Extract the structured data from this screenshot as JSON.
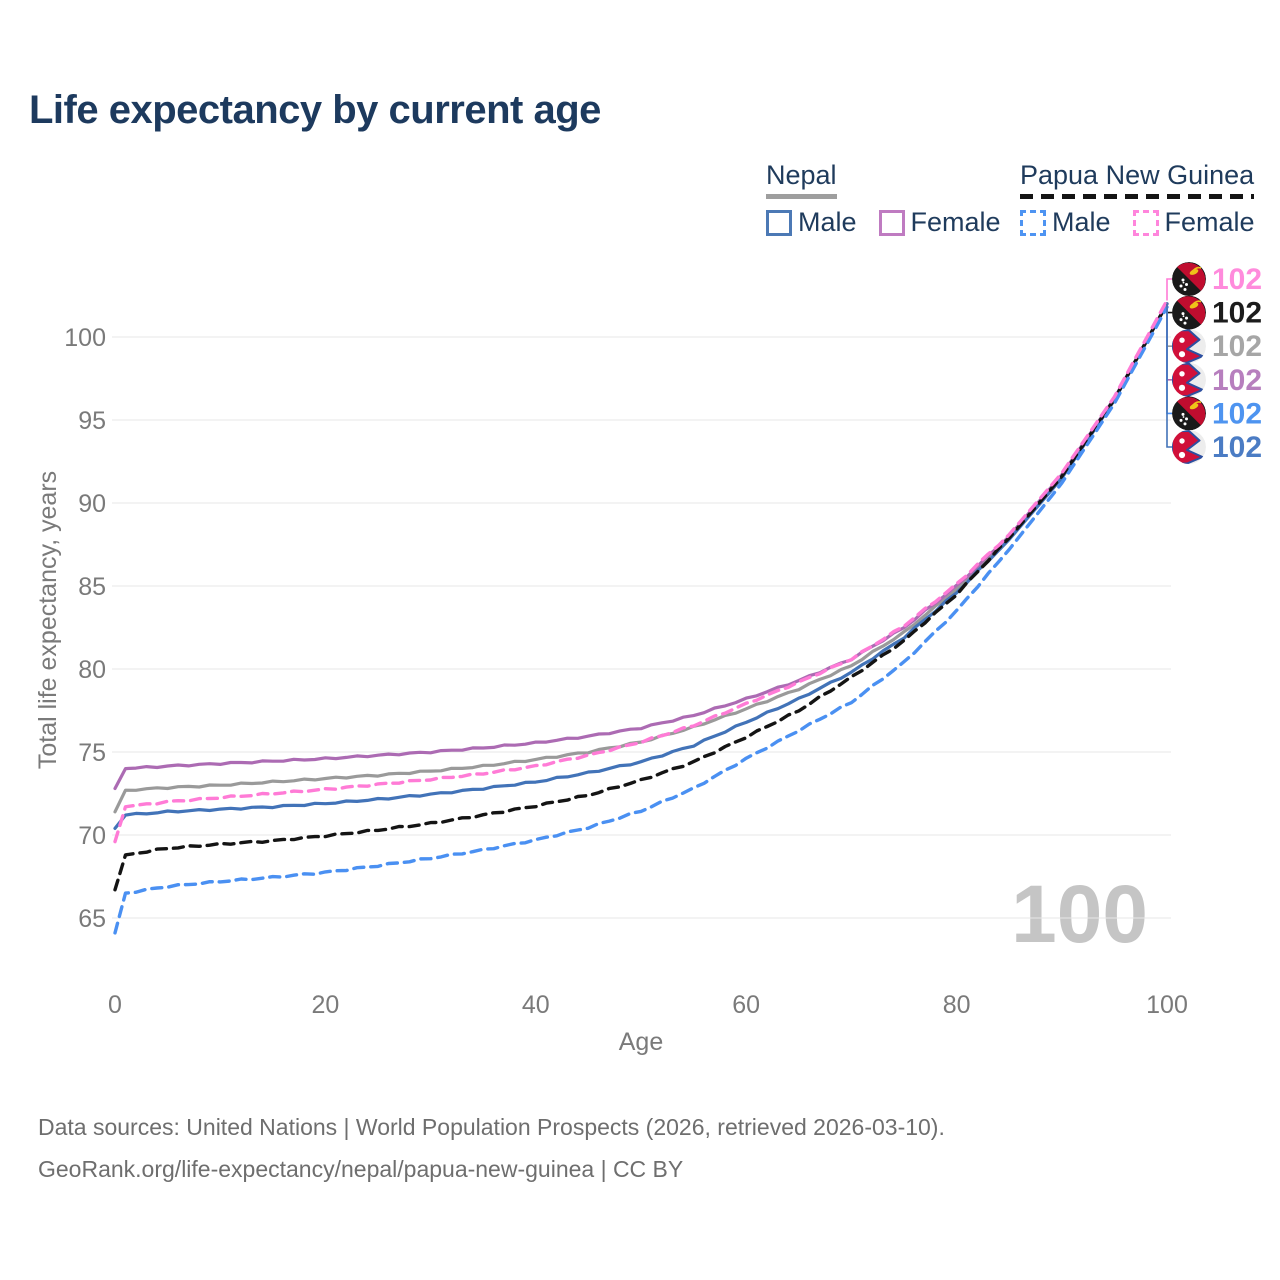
{
  "title": "Life expectancy by current age",
  "watermark": "100",
  "legend": {
    "nepal": {
      "label": "Nepal",
      "male": "Male",
      "female": "Female",
      "underline_color": "#9E9E9E",
      "male_color": "#4C79B5",
      "female_color": "#BF7BC1"
    },
    "papua_new_guinea": {
      "label": "Papua New Guinea",
      "male": "Male",
      "female": "Female",
      "underline_color": "#141414",
      "male_color": "#4E94F2",
      "female_color": "#FF85DC"
    }
  },
  "footer": {
    "line1": "Data sources: United Nations | World Population Prospects (2026, retrieved 2026-03-10).",
    "line2": "GeoRank.org/life-expectancy/nepal/papua-new-guinea | CC BY"
  },
  "chart_data": {
    "type": "line",
    "title": "Life expectancy by current age",
    "xlabel": "Age",
    "ylabel": "Total life expectancy, years",
    "x_ticks": [
      0,
      20,
      40,
      60,
      80,
      100
    ],
    "y_ticks": [
      65,
      70,
      75,
      80,
      85,
      90,
      95,
      100
    ],
    "xlim": [
      0,
      100
    ],
    "ylim": [
      63,
      103.5
    ],
    "grid": true,
    "legend_position": "top-right",
    "series": [
      {
        "key": "nepal_total",
        "name": "Nepal (both sexes)",
        "color": "#9A9A9A",
        "dash": false,
        "points": [
          [
            0,
            71.4
          ],
          [
            1,
            72.7
          ],
          [
            5,
            72.85
          ],
          [
            10,
            73.0
          ],
          [
            15,
            73.2
          ],
          [
            20,
            73.4
          ],
          [
            25,
            73.6
          ],
          [
            30,
            73.85
          ],
          [
            35,
            74.15
          ],
          [
            40,
            74.55
          ],
          [
            45,
            75.0
          ],
          [
            50,
            75.6
          ],
          [
            55,
            76.5
          ],
          [
            60,
            77.6
          ],
          [
            65,
            78.8
          ],
          [
            70,
            80.2
          ],
          [
            75,
            82.2
          ],
          [
            80,
            84.8
          ],
          [
            85,
            87.9
          ],
          [
            90,
            91.6
          ],
          [
            95,
            96.25
          ],
          [
            100,
            102.0
          ]
        ]
      },
      {
        "key": "nepal_female",
        "name": "Nepal Female",
        "color": "#AC6BB3",
        "dash": false,
        "points": [
          [
            0,
            72.8
          ],
          [
            1,
            74.0
          ],
          [
            5,
            74.15
          ],
          [
            10,
            74.3
          ],
          [
            15,
            74.45
          ],
          [
            20,
            74.6
          ],
          [
            25,
            74.8
          ],
          [
            30,
            75.0
          ],
          [
            35,
            75.25
          ],
          [
            40,
            75.55
          ],
          [
            45,
            75.95
          ],
          [
            50,
            76.45
          ],
          [
            55,
            77.2
          ],
          [
            60,
            78.2
          ],
          [
            65,
            79.3
          ],
          [
            70,
            80.6
          ],
          [
            75,
            82.5
          ],
          [
            80,
            85.0
          ],
          [
            85,
            88.0
          ],
          [
            90,
            91.7
          ],
          [
            95,
            96.3
          ],
          [
            100,
            102.0
          ]
        ]
      },
      {
        "key": "nepal_male",
        "name": "Nepal Male",
        "color": "#4273B8",
        "dash": false,
        "points": [
          [
            0,
            70.4
          ],
          [
            1,
            71.2
          ],
          [
            5,
            71.4
          ],
          [
            10,
            71.55
          ],
          [
            15,
            71.7
          ],
          [
            20,
            71.9
          ],
          [
            25,
            72.15
          ],
          [
            30,
            72.45
          ],
          [
            35,
            72.8
          ],
          [
            40,
            73.2
          ],
          [
            45,
            73.75
          ],
          [
            50,
            74.4
          ],
          [
            55,
            75.4
          ],
          [
            60,
            76.8
          ],
          [
            65,
            78.2
          ],
          [
            70,
            79.8
          ],
          [
            75,
            81.9
          ],
          [
            80,
            84.6
          ],
          [
            85,
            87.8
          ],
          [
            90,
            91.5
          ],
          [
            95,
            96.2
          ],
          [
            100,
            102.0
          ]
        ]
      },
      {
        "key": "png_total",
        "name": "Papua New Guinea (both sexes)",
        "color": "#141414",
        "dash": true,
        "points": [
          [
            0,
            66.7
          ],
          [
            1,
            68.8
          ],
          [
            5,
            69.2
          ],
          [
            10,
            69.45
          ],
          [
            15,
            69.65
          ],
          [
            20,
            69.95
          ],
          [
            25,
            70.3
          ],
          [
            30,
            70.7
          ],
          [
            35,
            71.2
          ],
          [
            40,
            71.75
          ],
          [
            45,
            72.4
          ],
          [
            50,
            73.3
          ],
          [
            55,
            74.4
          ],
          [
            60,
            75.9
          ],
          [
            65,
            77.5
          ],
          [
            70,
            79.5
          ],
          [
            75,
            81.7
          ],
          [
            80,
            84.5
          ],
          [
            85,
            87.9
          ],
          [
            90,
            91.6
          ],
          [
            95,
            96.25
          ],
          [
            100,
            102.0
          ]
        ]
      },
      {
        "key": "png_male",
        "name": "Papua New Guinea Male",
        "color": "#4A90F2",
        "dash": true,
        "points": [
          [
            0,
            64.1
          ],
          [
            1,
            66.5
          ],
          [
            5,
            66.9
          ],
          [
            10,
            67.2
          ],
          [
            15,
            67.45
          ],
          [
            20,
            67.75
          ],
          [
            25,
            68.15
          ],
          [
            30,
            68.6
          ],
          [
            35,
            69.1
          ],
          [
            40,
            69.7
          ],
          [
            45,
            70.45
          ],
          [
            50,
            71.45
          ],
          [
            55,
            72.8
          ],
          [
            60,
            74.6
          ],
          [
            65,
            76.3
          ],
          [
            70,
            78.0
          ],
          [
            75,
            80.4
          ],
          [
            80,
            83.5
          ],
          [
            85,
            87.2
          ],
          [
            90,
            91.2
          ],
          [
            95,
            96.0
          ],
          [
            100,
            101.8
          ]
        ]
      },
      {
        "key": "png_female",
        "name": "Papua New Guinea Female",
        "color": "#FF7BD6",
        "dash": true,
        "points": [
          [
            0,
            69.6
          ],
          [
            1,
            71.7
          ],
          [
            5,
            72.0
          ],
          [
            10,
            72.25
          ],
          [
            15,
            72.5
          ],
          [
            20,
            72.75
          ],
          [
            25,
            73.05
          ],
          [
            30,
            73.35
          ],
          [
            35,
            73.7
          ],
          [
            40,
            74.15
          ],
          [
            45,
            74.8
          ],
          [
            50,
            75.6
          ],
          [
            55,
            76.6
          ],
          [
            60,
            77.9
          ],
          [
            65,
            79.2
          ],
          [
            70,
            80.6
          ],
          [
            75,
            82.6
          ],
          [
            80,
            85.1
          ],
          [
            85,
            88.1
          ],
          [
            90,
            91.8
          ],
          [
            95,
            96.4
          ],
          [
            100,
            102.2
          ]
        ]
      }
    ],
    "end_labels": [
      {
        "series": "png_female",
        "flag": "png",
        "value": "102",
        "text_color": "#FF8BDC"
      },
      {
        "series": "png_total",
        "flag": "png",
        "value": "102",
        "text_color": "#1C1C1C"
      },
      {
        "series": "nepal_total",
        "flag": "nepal",
        "value": "102",
        "text_color": "#A6A6A6"
      },
      {
        "series": "nepal_female",
        "flag": "nepal",
        "value": "102",
        "text_color": "#B77FBE"
      },
      {
        "series": "png_male",
        "flag": "png",
        "value": "102",
        "text_color": "#4E94F0"
      },
      {
        "series": "nepal_male",
        "flag": "nepal",
        "value": "102",
        "text_color": "#4B7CC4"
      }
    ]
  }
}
